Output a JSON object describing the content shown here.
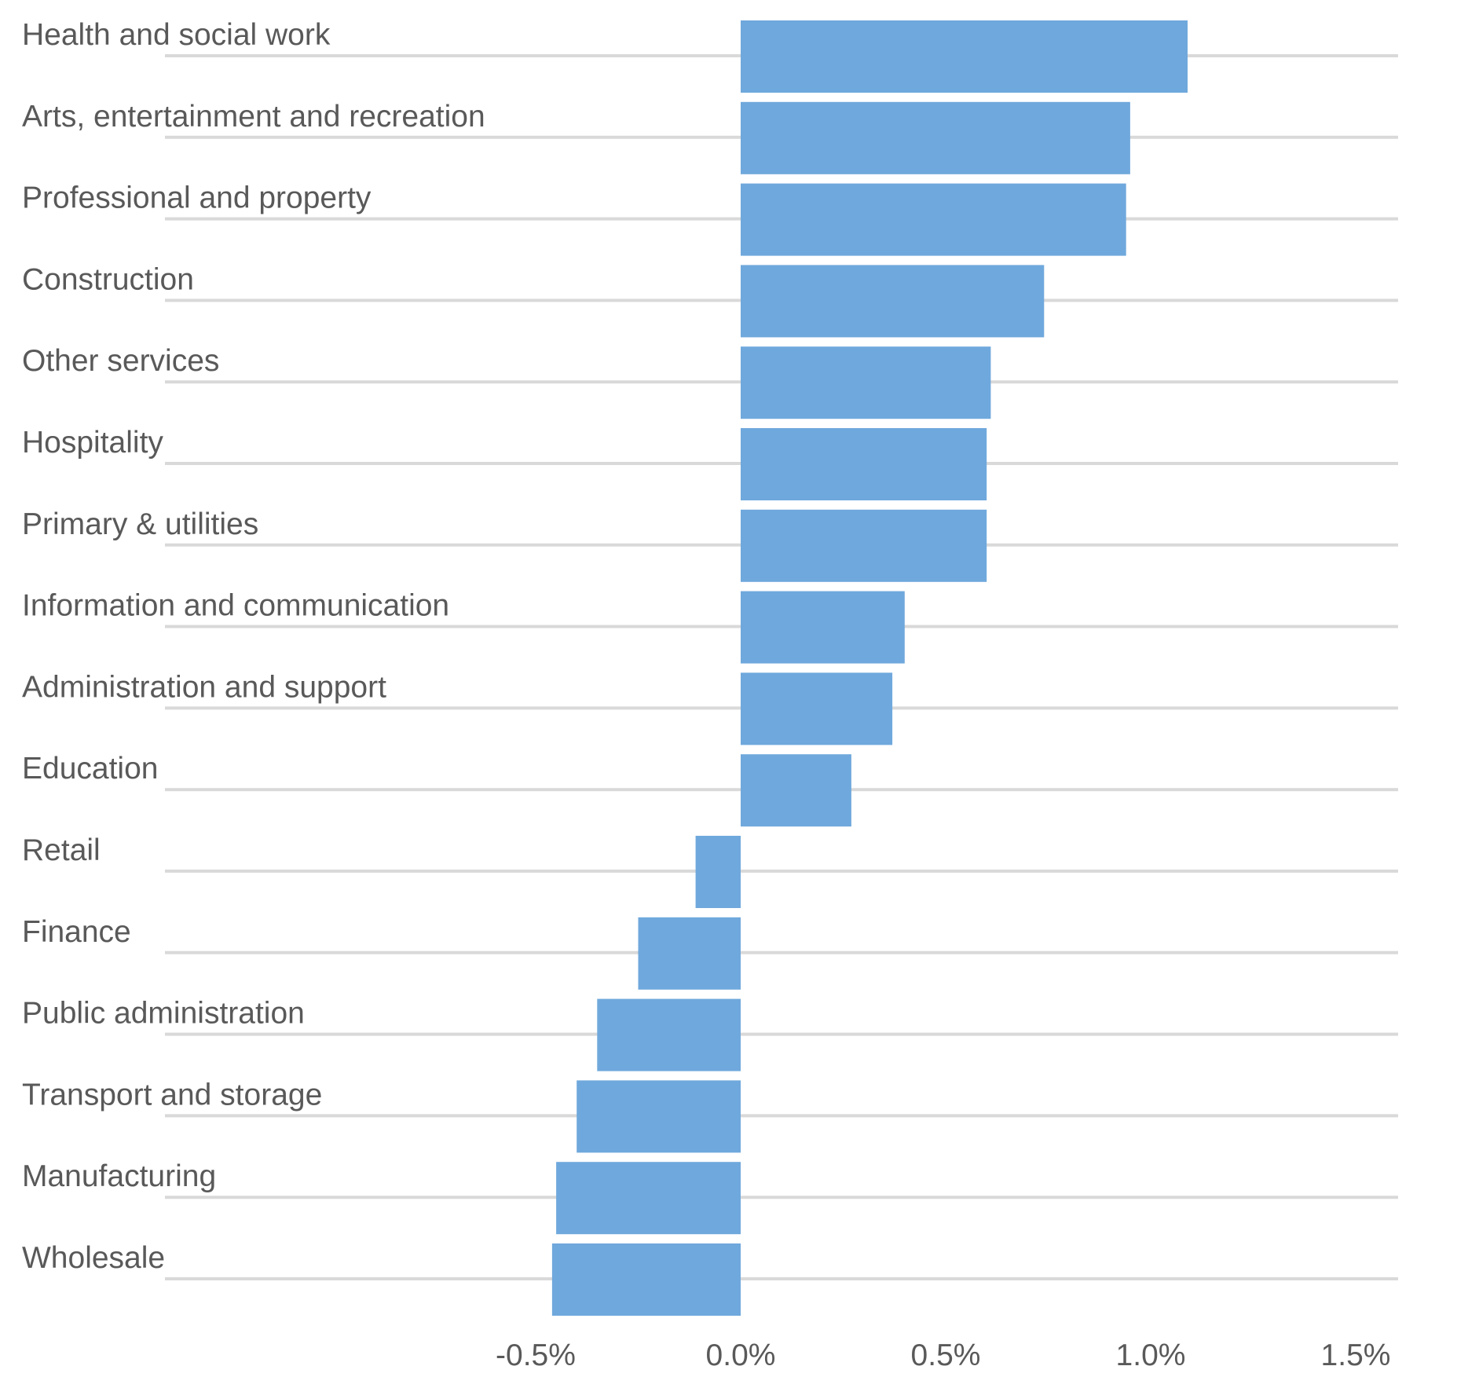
{
  "chart_data": {
    "type": "bar",
    "orientation": "horizontal",
    "title": "",
    "xlabel": "",
    "ylabel": "",
    "categories": [
      "Health and social work",
      "Arts, entertainment and recreation",
      "Professional and property",
      "Construction",
      "Other services",
      "Hospitality",
      "Primary & utilities",
      "Information and communication",
      "Administration and support",
      "Education",
      "Retail",
      "Finance",
      "Public administration",
      "Transport and storage",
      "Manufacturing",
      "Wholesale"
    ],
    "values": [
      1.09,
      0.95,
      0.94,
      0.74,
      0.61,
      0.6,
      0.6,
      0.4,
      0.37,
      0.27,
      -0.11,
      -0.25,
      -0.35,
      -0.4,
      -0.45,
      -0.46
    ],
    "value_unit": "%",
    "xlim": [
      -0.5,
      1.5
    ],
    "xticks": [
      -0.5,
      0.0,
      0.5,
      1.0,
      1.5
    ],
    "xtick_labels": [
      "-0.5%",
      "0.0%",
      "0.5%",
      "1.0%",
      "1.5%"
    ],
    "grid": true,
    "legend": "none",
    "bar_color": "#6fa8dc",
    "grid_color": "#d9d9d9",
    "text_color": "#595959"
  }
}
